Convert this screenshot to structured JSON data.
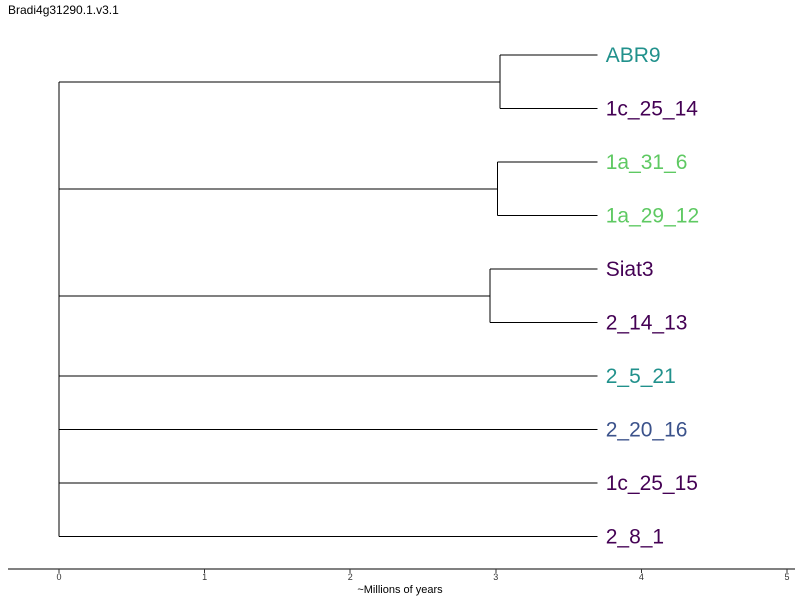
{
  "title": "Bradi4g31290.1.v3.1",
  "chart_data": {
    "type": "dendrogram",
    "xlabel": "~Millions of years",
    "xlim": [
      0,
      5
    ],
    "xticks": [
      0,
      1,
      2,
      3,
      4,
      5
    ],
    "tip_age": 3.7,
    "leaves": [
      {
        "label": "ABR9",
        "color": "#21918c"
      },
      {
        "label": "1c_25_14",
        "color": "#440154"
      },
      {
        "label": "1a_31_6",
        "color": "#5ec962"
      },
      {
        "label": "1a_29_12",
        "color": "#5ec962"
      },
      {
        "label": "Siat3",
        "color": "#440154"
      },
      {
        "label": "2_14_13",
        "color": "#440154"
      },
      {
        "label": "2_5_21",
        "color": "#21918c"
      },
      {
        "label": "2_20_16",
        "color": "#3b528b"
      },
      {
        "label": "1c_25_15",
        "color": "#440154"
      },
      {
        "label": "2_8_1",
        "color": "#440154"
      }
    ],
    "root_age": 0,
    "clades": [
      {
        "age": 3.03,
        "leaves": [
          0,
          1
        ]
      },
      {
        "age": 3.01,
        "leaves": [
          2,
          3
        ]
      },
      {
        "age": 2.96,
        "leaves": [
          4,
          5
        ]
      }
    ],
    "root_children": [
      {
        "clade": 0
      },
      {
        "clade": 1
      },
      {
        "clade": 2
      },
      {
        "leaf": 6
      },
      {
        "leaf": 7
      },
      {
        "leaf": 8
      },
      {
        "leaf": 9
      }
    ]
  }
}
